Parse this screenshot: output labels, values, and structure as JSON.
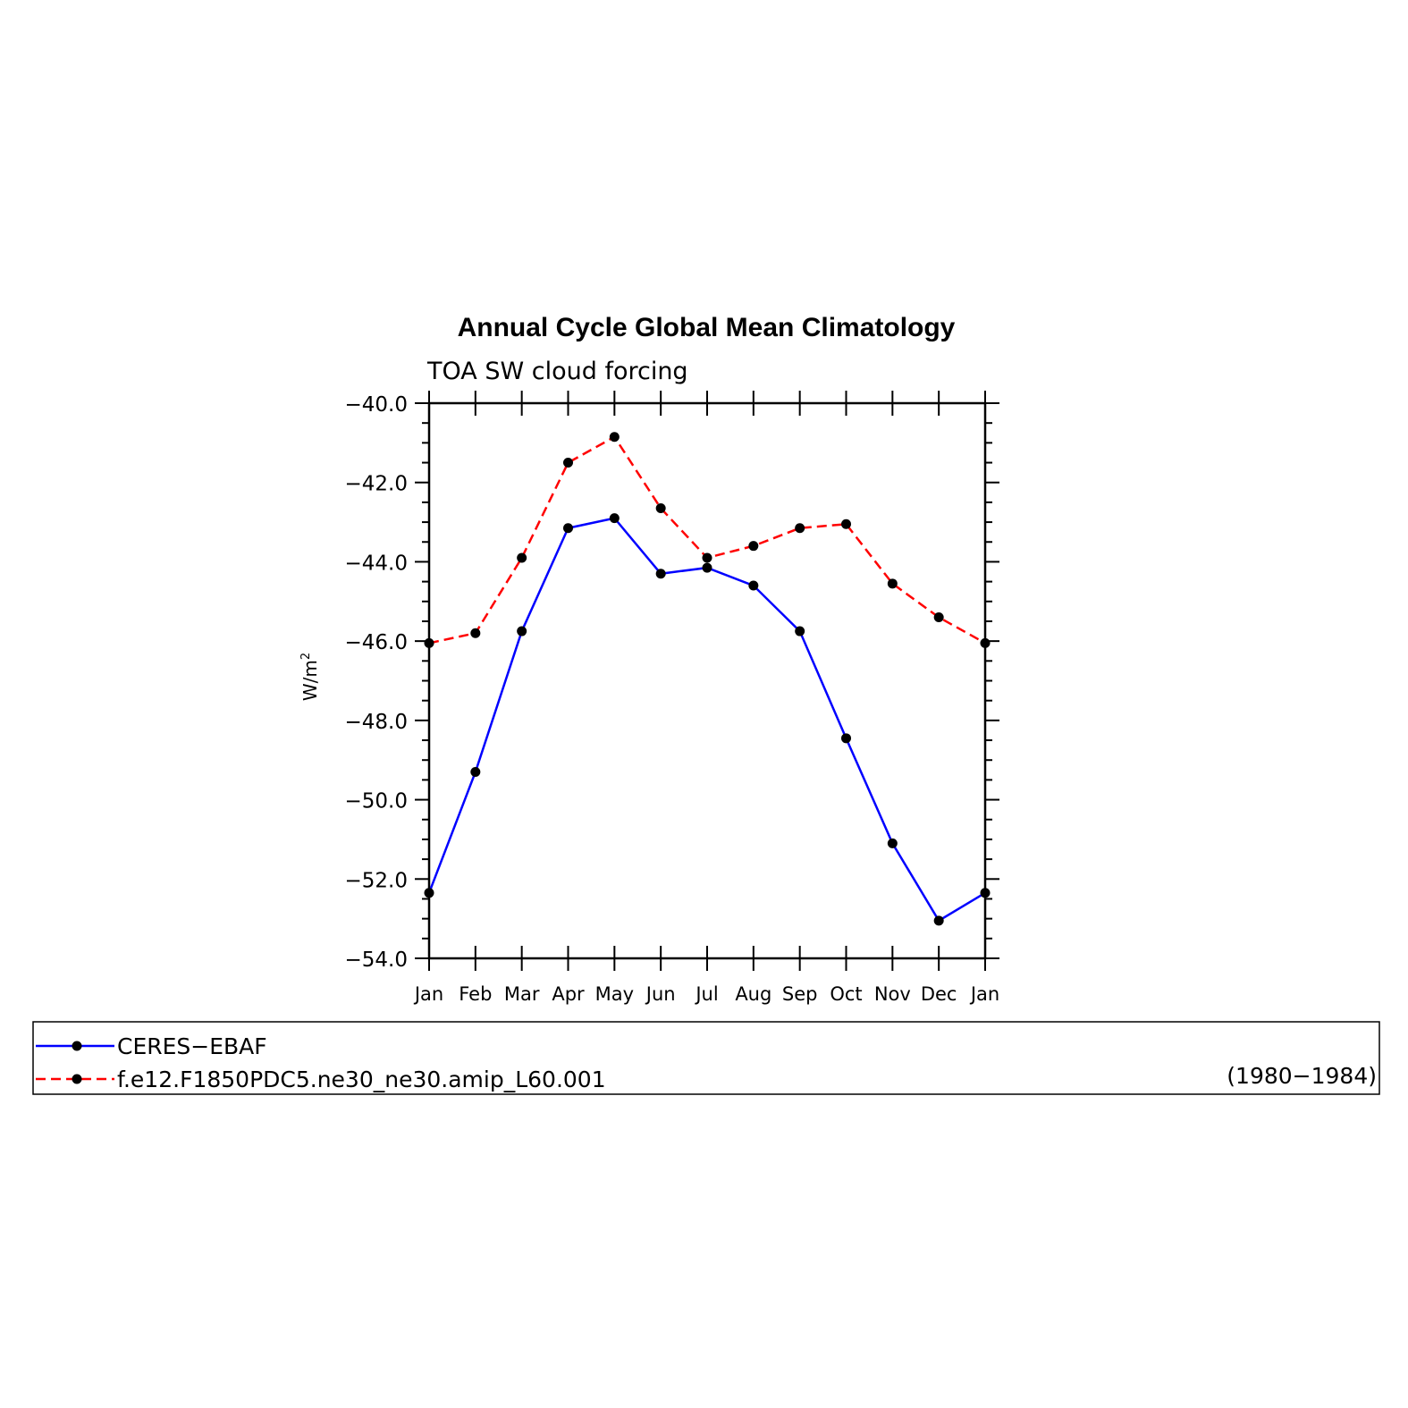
{
  "chart_data": {
    "type": "line",
    "title": "Annual Cycle Global Mean Climatology",
    "subtitle": "TOA SW cloud forcing",
    "ylabel": "W/m",
    "ylabel_sup": "2",
    "xlabel": "",
    "categories": [
      "Jan",
      "Feb",
      "Mar",
      "Apr",
      "May",
      "Jun",
      "Jul",
      "Aug",
      "Sep",
      "Oct",
      "Nov",
      "Dec",
      "Jan"
    ],
    "ylim": [
      -54.0,
      -40.0
    ],
    "yticks": [
      "-40.0",
      "-42.0",
      "-44.0",
      "-46.0",
      "-48.0",
      "-50.0",
      "-52.0",
      "-54.0"
    ],
    "grid": false,
    "legend_position": "bottom",
    "series": [
      {
        "name": "CERES-EBAF",
        "color": "#0000ff",
        "dash": "solid",
        "values": [
          -52.35,
          -49.3,
          -45.75,
          -43.15,
          -42.9,
          -44.3,
          -44.15,
          -44.6,
          -45.75,
          -48.45,
          -51.1,
          -53.05,
          -52.35
        ]
      },
      {
        "name": "f.e12.F1850PDC5.ne30_ne30.amip_L60.001",
        "period": "(1980−1984)",
        "color": "#ff0000",
        "dash": "dashed",
        "values": [
          -46.05,
          -45.8,
          -43.9,
          -41.5,
          -40.85,
          -42.65,
          -43.9,
          -43.6,
          -43.15,
          -43.05,
          -44.55,
          -45.4,
          -46.05
        ]
      }
    ]
  }
}
